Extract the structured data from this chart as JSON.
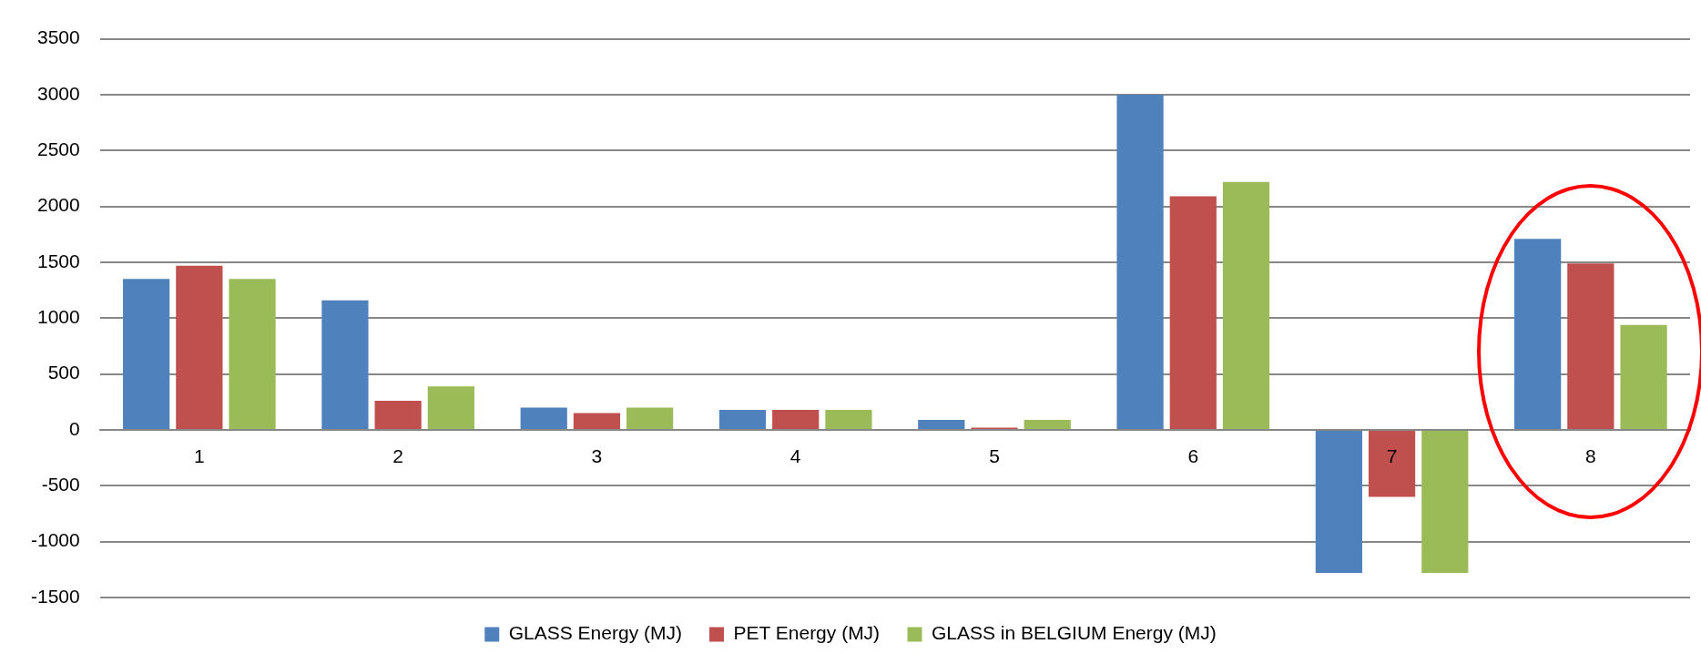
{
  "chart_data": {
    "type": "bar",
    "categories": [
      "1",
      "2",
      "3",
      "4",
      "5",
      "6",
      "7",
      "8"
    ],
    "series": [
      {
        "name": "GLASS Energy (MJ)",
        "color": "#4f81bd",
        "values": [
          1350,
          1160,
          200,
          180,
          90,
          3000,
          -1280,
          1710
        ]
      },
      {
        "name": "PET Energy (MJ)",
        "color": "#c0504d",
        "values": [
          1470,
          260,
          150,
          180,
          20,
          2090,
          -600,
          1490
        ]
      },
      {
        "name": "GLASS in BELGIUM Energy (MJ)",
        "color": "#9bbb59",
        "values": [
          1350,
          390,
          200,
          180,
          90,
          2220,
          -1280,
          940
        ]
      }
    ],
    "ylim": [
      -1500,
      3500
    ],
    "yticks": [
      -1500,
      -1000,
      -500,
      0,
      500,
      1000,
      1500,
      2000,
      2500,
      3000,
      3500
    ],
    "grid": "y",
    "legend": "bottom"
  }
}
